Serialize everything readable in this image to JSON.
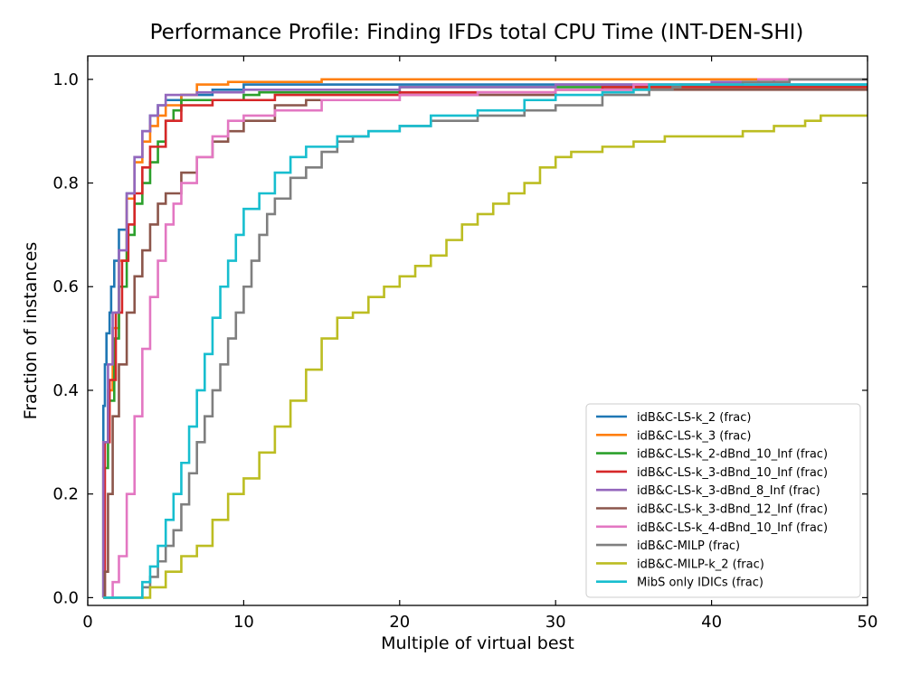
{
  "chart_data": {
    "type": "line",
    "title": "Performance Profile: Finding IFDs total CPU Time (INT-DEN-SHI)",
    "xlabel": "Multiple of virtual best",
    "ylabel": "Fraction of instances",
    "xlim": [
      0,
      50
    ],
    "ylim": [
      -0.015,
      1.045
    ],
    "xticks": [
      0,
      10,
      20,
      30,
      40,
      50
    ],
    "xtick_labels": [
      "0",
      "10",
      "20",
      "30",
      "40",
      "50"
    ],
    "yticks": [
      0.0,
      0.2,
      0.4,
      0.6,
      0.8,
      1.0
    ],
    "ytick_labels": [
      "0.0",
      "0.2",
      "0.4",
      "0.6",
      "0.8",
      "1.0"
    ],
    "legend_position": "lower-right",
    "series": [
      {
        "name": "idB&C-LS-k_2 (frac)",
        "color": "#1f77b4",
        "points": [
          [
            1.0,
            0.0
          ],
          [
            1.0,
            0.37
          ],
          [
            1.1,
            0.45
          ],
          [
            1.2,
            0.51
          ],
          [
            1.4,
            0.55
          ],
          [
            1.5,
            0.6
          ],
          [
            1.7,
            0.65
          ],
          [
            2.0,
            0.71
          ],
          [
            2.5,
            0.78
          ],
          [
            3.0,
            0.85
          ],
          [
            3.5,
            0.9
          ],
          [
            4.0,
            0.93
          ],
          [
            4.5,
            0.95
          ],
          [
            5.0,
            0.96
          ],
          [
            6.0,
            0.97
          ],
          [
            8.0,
            0.98
          ],
          [
            10.0,
            0.99
          ],
          [
            20.0,
            0.99
          ],
          [
            30.0,
            0.99
          ],
          [
            50.0,
            0.99
          ]
        ]
      },
      {
        "name": "idB&C-LS-k_3 (frac)",
        "color": "#ff7f0e",
        "points": [
          [
            1.0,
            0.0
          ],
          [
            1.0,
            0.3
          ],
          [
            1.3,
            0.4
          ],
          [
            1.6,
            0.52
          ],
          [
            2.0,
            0.65
          ],
          [
            2.5,
            0.77
          ],
          [
            3.0,
            0.84
          ],
          [
            3.5,
            0.88
          ],
          [
            4.0,
            0.91
          ],
          [
            4.5,
            0.93
          ],
          [
            5.0,
            0.95
          ],
          [
            6.0,
            0.97
          ],
          [
            7.0,
            0.99
          ],
          [
            9.0,
            0.995
          ],
          [
            15.0,
            1.0
          ],
          [
            26.4,
            1.0
          ],
          [
            50.0,
            1.0
          ]
        ]
      },
      {
        "name": "idB&C-LS-k_2-dBnd_10_Inf (frac)",
        "color": "#2ca02c",
        "points": [
          [
            1.0,
            0.0
          ],
          [
            1.0,
            0.25
          ],
          [
            1.3,
            0.38
          ],
          [
            1.7,
            0.5
          ],
          [
            2.0,
            0.6
          ],
          [
            2.5,
            0.7
          ],
          [
            3.0,
            0.76
          ],
          [
            3.5,
            0.8
          ],
          [
            4.0,
            0.84
          ],
          [
            4.5,
            0.88
          ],
          [
            5.0,
            0.92
          ],
          [
            5.5,
            0.94
          ],
          [
            6.0,
            0.96
          ],
          [
            8.0,
            0.96
          ],
          [
            10.0,
            0.97
          ],
          [
            11.0,
            0.975
          ],
          [
            20.0,
            0.985
          ],
          [
            50.0,
            0.985
          ]
        ]
      },
      {
        "name": "idB&C-LS-k_3-dBnd_10_Inf (frac)",
        "color": "#d62728",
        "points": [
          [
            1.0,
            0.0
          ],
          [
            1.1,
            0.3
          ],
          [
            1.4,
            0.42
          ],
          [
            1.8,
            0.55
          ],
          [
            2.2,
            0.65
          ],
          [
            2.6,
            0.72
          ],
          [
            3.0,
            0.78
          ],
          [
            3.5,
            0.83
          ],
          [
            4.0,
            0.87
          ],
          [
            5.0,
            0.92
          ],
          [
            6.0,
            0.95
          ],
          [
            8.0,
            0.96
          ],
          [
            12.0,
            0.97
          ],
          [
            20.0,
            0.975
          ],
          [
            25.0,
            0.975
          ],
          [
            30.0,
            0.98
          ],
          [
            33.0,
            0.985
          ],
          [
            50.0,
            0.985
          ]
        ]
      },
      {
        "name": "idB&C-LS-k_3-dBnd_8_Inf (frac)",
        "color": "#9467bd",
        "points": [
          [
            1.0,
            0.0
          ],
          [
            1.0,
            0.3
          ],
          [
            1.3,
            0.45
          ],
          [
            1.6,
            0.55
          ],
          [
            2.0,
            0.67
          ],
          [
            2.5,
            0.78
          ],
          [
            3.0,
            0.85
          ],
          [
            3.5,
            0.9
          ],
          [
            4.0,
            0.93
          ],
          [
            4.5,
            0.95
          ],
          [
            5.0,
            0.97
          ],
          [
            7.0,
            0.975
          ],
          [
            10.0,
            0.98
          ],
          [
            20.0,
            0.985
          ],
          [
            30.0,
            0.99
          ],
          [
            40.0,
            0.995
          ],
          [
            44.0,
            1.0
          ],
          [
            50.0,
            1.0
          ]
        ]
      },
      {
        "name": "idB&C-LS-k_3-dBnd_12_Inf (frac)",
        "color": "#8c564b",
        "points": [
          [
            1.0,
            0.0
          ],
          [
            1.1,
            0.05
          ],
          [
            1.3,
            0.2
          ],
          [
            1.6,
            0.35
          ],
          [
            2.0,
            0.45
          ],
          [
            2.5,
            0.55
          ],
          [
            3.0,
            0.62
          ],
          [
            3.5,
            0.67
          ],
          [
            4.0,
            0.72
          ],
          [
            4.5,
            0.76
          ],
          [
            5.0,
            0.78
          ],
          [
            6.0,
            0.82
          ],
          [
            7.0,
            0.85
          ],
          [
            8.0,
            0.88
          ],
          [
            9.0,
            0.9
          ],
          [
            10.0,
            0.92
          ],
          [
            12.0,
            0.95
          ],
          [
            14.0,
            0.96
          ],
          [
            20.0,
            0.97
          ],
          [
            30.0,
            0.98
          ],
          [
            50.0,
            0.98
          ]
        ]
      },
      {
        "name": "idB&C-LS-k_4-dBnd_10_Inf (frac)",
        "color": "#e377c2",
        "points": [
          [
            1.0,
            0.0
          ],
          [
            1.3,
            0.0
          ],
          [
            1.6,
            0.03
          ],
          [
            2.0,
            0.08
          ],
          [
            2.5,
            0.2
          ],
          [
            3.0,
            0.35
          ],
          [
            3.5,
            0.48
          ],
          [
            4.0,
            0.58
          ],
          [
            4.5,
            0.65
          ],
          [
            5.0,
            0.72
          ],
          [
            5.5,
            0.76
          ],
          [
            6.0,
            0.8
          ],
          [
            7.0,
            0.85
          ],
          [
            8.0,
            0.89
          ],
          [
            9.0,
            0.92
          ],
          [
            10.0,
            0.93
          ],
          [
            12.0,
            0.94
          ],
          [
            15.0,
            0.96
          ],
          [
            20.0,
            0.97
          ],
          [
            25.0,
            0.975
          ],
          [
            30.0,
            0.98
          ],
          [
            35.0,
            0.99
          ],
          [
            40.0,
            0.99
          ],
          [
            43.0,
            1.0
          ],
          [
            47.0,
            1.0
          ],
          [
            50.0,
            1.0
          ]
        ]
      },
      {
        "name": "idB&C-MILP (frac)",
        "color": "#7f7f7f",
        "points": [
          [
            1.0,
            0.0
          ],
          [
            3.0,
            0.0
          ],
          [
            3.5,
            0.02
          ],
          [
            4.0,
            0.04
          ],
          [
            4.5,
            0.07
          ],
          [
            5.0,
            0.1
          ],
          [
            5.5,
            0.13
          ],
          [
            6.0,
            0.18
          ],
          [
            6.5,
            0.24
          ],
          [
            7.0,
            0.3
          ],
          [
            7.5,
            0.35
          ],
          [
            8.0,
            0.4
          ],
          [
            8.5,
            0.45
          ],
          [
            9.0,
            0.5
          ],
          [
            9.5,
            0.55
          ],
          [
            10.0,
            0.6
          ],
          [
            10.5,
            0.65
          ],
          [
            11.0,
            0.7
          ],
          [
            11.5,
            0.74
          ],
          [
            12.0,
            0.77
          ],
          [
            13.0,
            0.81
          ],
          [
            14.0,
            0.83
          ],
          [
            15.0,
            0.86
          ],
          [
            16.0,
            0.88
          ],
          [
            17.0,
            0.89
          ],
          [
            18.0,
            0.9
          ],
          [
            20.0,
            0.91
          ],
          [
            22.0,
            0.92
          ],
          [
            25.0,
            0.93
          ],
          [
            28.0,
            0.94
          ],
          [
            30.0,
            0.95
          ],
          [
            33.0,
            0.97
          ],
          [
            36.0,
            0.98
          ],
          [
            37.5,
            0.985
          ],
          [
            38.0,
            0.99
          ],
          [
            42.0,
            0.995
          ],
          [
            45.0,
            1.0
          ],
          [
            50.0,
            1.0
          ]
        ]
      },
      {
        "name": "idB&C-MILP-k_2 (frac)",
        "color": "#bcbd22",
        "points": [
          [
            1.0,
            0.0
          ],
          [
            3.5,
            0.0
          ],
          [
            4.0,
            0.02
          ],
          [
            5.0,
            0.05
          ],
          [
            6.0,
            0.08
          ],
          [
            7.0,
            0.1
          ],
          [
            8.0,
            0.15
          ],
          [
            9.0,
            0.2
          ],
          [
            10.0,
            0.23
          ],
          [
            11.0,
            0.28
          ],
          [
            12.0,
            0.33
          ],
          [
            13.0,
            0.38
          ],
          [
            14.0,
            0.44
          ],
          [
            15.0,
            0.5
          ],
          [
            16.0,
            0.54
          ],
          [
            17.0,
            0.55
          ],
          [
            18.0,
            0.58
          ],
          [
            19.0,
            0.6
          ],
          [
            20.0,
            0.62
          ],
          [
            21.0,
            0.64
          ],
          [
            22.0,
            0.66
          ],
          [
            23.0,
            0.69
          ],
          [
            24.0,
            0.72
          ],
          [
            25.0,
            0.74
          ],
          [
            26.0,
            0.76
          ],
          [
            27.0,
            0.78
          ],
          [
            28.0,
            0.8
          ],
          [
            29.0,
            0.83
          ],
          [
            30.0,
            0.85
          ],
          [
            31.0,
            0.86
          ],
          [
            33.0,
            0.87
          ],
          [
            35.0,
            0.88
          ],
          [
            37.0,
            0.89
          ],
          [
            40.0,
            0.89
          ],
          [
            42.0,
            0.9
          ],
          [
            44.0,
            0.91
          ],
          [
            46.0,
            0.92
          ],
          [
            47.0,
            0.93
          ],
          [
            50.0,
            0.93
          ]
        ]
      },
      {
        "name": "MibS only IDICs (frac)",
        "color": "#17becf",
        "points": [
          [
            1.0,
            0.0
          ],
          [
            3.0,
            0.0
          ],
          [
            3.5,
            0.03
          ],
          [
            4.0,
            0.06
          ],
          [
            4.5,
            0.1
          ],
          [
            5.0,
            0.15
          ],
          [
            5.5,
            0.2
          ],
          [
            6.0,
            0.26
          ],
          [
            6.5,
            0.33
          ],
          [
            7.0,
            0.4
          ],
          [
            7.5,
            0.47
          ],
          [
            8.0,
            0.54
          ],
          [
            8.5,
            0.6
          ],
          [
            9.0,
            0.65
          ],
          [
            9.5,
            0.7
          ],
          [
            10.0,
            0.75
          ],
          [
            11.0,
            0.78
          ],
          [
            12.0,
            0.82
          ],
          [
            13.0,
            0.85
          ],
          [
            14.0,
            0.87
          ],
          [
            16.0,
            0.89
          ],
          [
            18.0,
            0.9
          ],
          [
            20.0,
            0.91
          ],
          [
            22.0,
            0.93
          ],
          [
            25.0,
            0.94
          ],
          [
            28.0,
            0.96
          ],
          [
            30.0,
            0.97
          ],
          [
            33.0,
            0.975
          ],
          [
            35.0,
            0.98
          ],
          [
            36.0,
            0.99
          ],
          [
            40.0,
            0.99
          ],
          [
            50.0,
            0.99
          ]
        ]
      }
    ]
  }
}
